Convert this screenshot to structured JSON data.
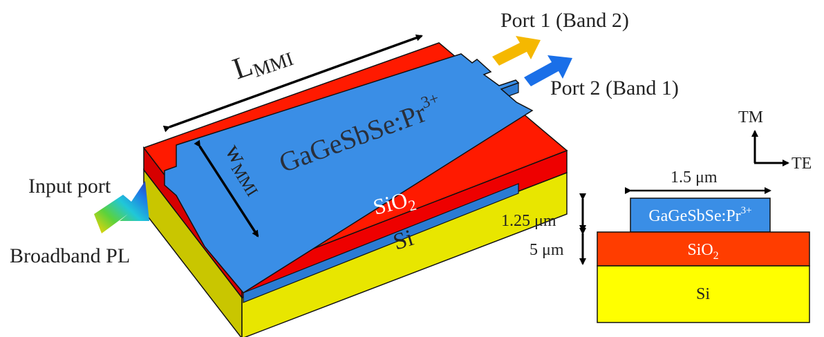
{
  "figure": {
    "labels": {
      "length_main": "L",
      "length_sub": "MMI",
      "width_main": "w",
      "width_sub": "MMI",
      "core_material": "GaGeSbSe:Pr",
      "core_material_sup": "3+",
      "oxide_main": "SiO",
      "oxide_sub": "2",
      "substrate": "Si",
      "input_port": "Input port",
      "input_source": "Broadband PL",
      "port1": "Port 1 (Band 2)",
      "port2": "Port 2 (Band 1)"
    },
    "cross_section": {
      "tm_label": "TM",
      "te_label": "TE",
      "width_label": "1.5 μm",
      "core_thickness_label": "1.25 μm",
      "oxide_thickness_label": "5 μm",
      "core_main": "GaGeSbSe:Pr",
      "core_sup": "3+",
      "oxide_main": "SiO",
      "oxide_sub": "2",
      "substrate": "Si"
    },
    "colors": {
      "core": "#3a8ee6",
      "oxide": "#ee0000",
      "substrate": "#e8e600",
      "port1_arrow": "#f5b800",
      "port2_arrow": "#1a6fe8",
      "cross_oxide": "#ff3d00",
      "cross_substrate": "#ffff00"
    }
  }
}
